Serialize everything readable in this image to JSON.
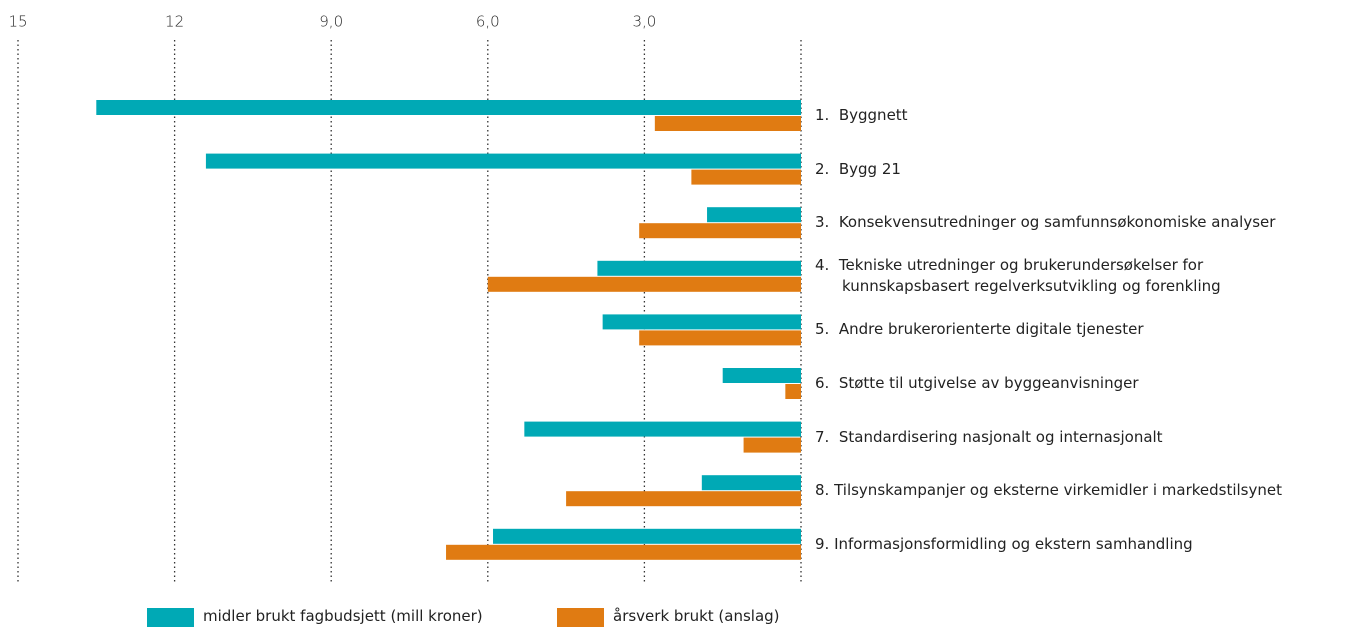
{
  "chart_data": {
    "type": "barh",
    "categories": [
      "1.  Byggnett",
      "2.  Bygg 21",
      "3.  Konsekvensutredninger og samfunnsøkonomiske analyser",
      "4.  Tekniske utredninger og brukerundersøkelser for\nkunnskapsbasert regelverksutvikling og forenkling",
      "5.  Andre brukerorienterte digitale tjenester",
      "6.  Støtte til utgivelse av byggeanvisninger",
      "7.  Standardisering nasjonalt og internasjonalt",
      "8. Tilsynskampanjer og eksterne virkemidler i markedstilsynet",
      "9. Informasjonsformidling og ekstern samhandling"
    ],
    "series": [
      {
        "name": "midler brukt fagbudsjett (mill kroner)",
        "color": "#00a9b5",
        "values": [
          13.5,
          11.4,
          1.8,
          3.9,
          3.8,
          1.5,
          5.3,
          1.9,
          5.9
        ]
      },
      {
        "name": "årsverk brukt (anslag)",
        "color": "#e07b12",
        "values": [
          2.8,
          2.1,
          3.1,
          6.0,
          3.1,
          0.3,
          1.1,
          4.5,
          6.8
        ]
      }
    ],
    "xlim": [
      15,
      0
    ],
    "xticks": [
      15,
      12,
      {
        "value": 9,
        "label": "9,0"
      },
      {
        "value": 6,
        "label": "6,0"
      },
      {
        "value": 3,
        "label": "3,0"
      }
    ],
    "grid": true,
    "legend": "bottom"
  }
}
